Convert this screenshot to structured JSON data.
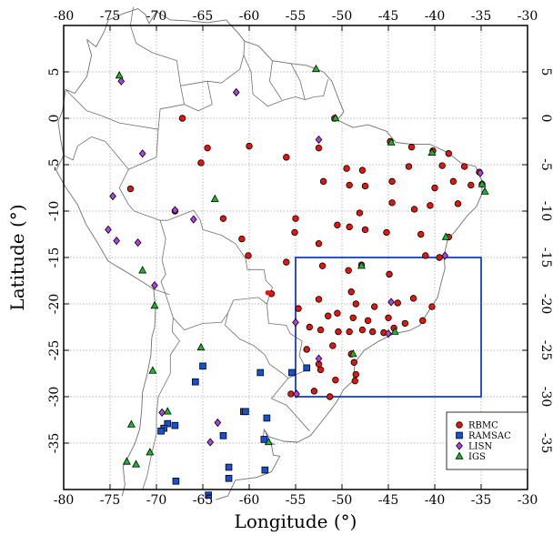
{
  "colors": {
    "rbmc": "#e8140c",
    "ramsac": "#1450d8",
    "lisn": "#b040e8",
    "igs": "#10c020",
    "region_box": "#1440c8",
    "coast": "#707070",
    "grid": "#a0a0a0"
  },
  "chart_data": {
    "type": "scatter",
    "xlabel": "Longitude (°)",
    "ylabel": "Latitude (°)",
    "xlim": [
      -80,
      -30
    ],
    "ylim": [
      -40,
      10
    ],
    "xticks": [
      -80,
      -75,
      -70,
      -65,
      -60,
      -55,
      -50,
      -45,
      -40,
      -35,
      -30
    ],
    "yticks": [
      5,
      0,
      -5,
      -10,
      -15,
      -20,
      -25,
      -30,
      -35
    ],
    "grid": true,
    "legend_position": "bottom-right",
    "region_box": {
      "lon": [
        -55,
        -35
      ],
      "lat": [
        -30,
        -15
      ]
    },
    "series": [
      {
        "name": "RBMC",
        "marker": "circle",
        "points": [
          [
            -67.2,
            0.0
          ],
          [
            -50.8,
            0.0
          ],
          [
            -64.5,
            -3.2
          ],
          [
            -60.0,
            -3.0
          ],
          [
            -56.0,
            -4.2
          ],
          [
            -52.5,
            -3.2
          ],
          [
            -65.2,
            -4.8
          ],
          [
            -49.5,
            -5.4
          ],
          [
            -47.8,
            -5.6
          ],
          [
            -44.8,
            -2.5
          ],
          [
            -42.5,
            -3.1
          ],
          [
            -40.2,
            -3.5
          ],
          [
            -38.5,
            -3.8
          ],
          [
            -39.2,
            -5.1
          ],
          [
            -36.8,
            -5.2
          ],
          [
            -35.2,
            -5.8
          ],
          [
            -34.9,
            -7.1
          ],
          [
            -36.1,
            -7.2
          ],
          [
            -38.0,
            -6.8
          ],
          [
            -40.0,
            -7.5
          ],
          [
            -42.8,
            -5.2
          ],
          [
            -44.6,
            -6.8
          ],
          [
            -47.5,
            -7.3
          ],
          [
            -49.2,
            -7.2
          ],
          [
            -52.0,
            -6.8
          ],
          [
            -72.8,
            -7.6
          ],
          [
            -68.0,
            -10.0
          ],
          [
            -62.8,
            -10.8
          ],
          [
            -60.8,
            -13.0
          ],
          [
            -55.0,
            -10.8
          ],
          [
            -52.5,
            -13.5
          ],
          [
            -48.1,
            -10.2
          ],
          [
            -44.6,
            -9.1
          ],
          [
            -42.2,
            -9.8
          ],
          [
            -40.5,
            -9.4
          ],
          [
            -37.5,
            -9.2
          ],
          [
            -38.5,
            -12.8
          ],
          [
            -41.5,
            -12.5
          ],
          [
            -45.2,
            -12.3
          ],
          [
            -47.5,
            -12.0
          ],
          [
            -49.2,
            -11.7
          ],
          [
            -50.5,
            -11.5
          ],
          [
            -55.1,
            -12.3
          ],
          [
            -60.1,
            -14.8
          ],
          [
            -56.0,
            -15.5
          ],
          [
            -52.1,
            -15.9
          ],
          [
            -49.3,
            -16.4
          ],
          [
            -47.9,
            -15.8
          ],
          [
            -44.9,
            -16.8
          ],
          [
            -41.0,
            -14.8
          ],
          [
            -39.5,
            -15.0
          ],
          [
            -57.6,
            -18.9
          ],
          [
            -54.7,
            -20.5
          ],
          [
            -52.5,
            -19.5
          ],
          [
            -49.0,
            -18.7
          ],
          [
            -48.5,
            -20.0
          ],
          [
            -46.5,
            -20.3
          ],
          [
            -44.0,
            -19.9
          ],
          [
            -42.3,
            -19.4
          ],
          [
            -40.3,
            -20.3
          ],
          [
            -50.5,
            -21.0
          ],
          [
            -51.5,
            -21.3
          ],
          [
            -48.8,
            -21.5
          ],
          [
            -47.2,
            -21.8
          ],
          [
            -45.0,
            -21.5
          ],
          [
            -43.2,
            -22.1
          ],
          [
            -41.3,
            -21.8
          ],
          [
            -53.5,
            -22.5
          ],
          [
            -52.3,
            -22.8
          ],
          [
            -50.4,
            -23.0
          ],
          [
            -49.2,
            -23.0
          ],
          [
            -47.8,
            -22.8
          ],
          [
            -46.7,
            -23.0
          ],
          [
            -45.5,
            -23.1
          ],
          [
            -44.4,
            -22.6
          ],
          [
            -53.8,
            -24.9
          ],
          [
            -51.0,
            -24.5
          ],
          [
            -49.0,
            -25.4
          ],
          [
            -52.5,
            -26.5
          ],
          [
            -48.7,
            -26.3
          ],
          [
            -52.3,
            -27.1
          ],
          [
            -48.5,
            -27.6
          ],
          [
            -48.6,
            -28.3
          ],
          [
            -50.7,
            -28.2
          ],
          [
            -55.5,
            -29.7
          ],
          [
            -53.0,
            -29.4
          ],
          [
            -51.3,
            -30.0
          ]
        ],
        "special_points": [
          [
            -58.0,
            -18.8
          ]
        ]
      },
      {
        "name": "RAMSAC",
        "marker": "square",
        "points": [
          [
            -65.0,
            -26.7
          ],
          [
            -65.8,
            -28.4
          ],
          [
            -58.8,
            -27.4
          ],
          [
            -55.4,
            -27.4
          ],
          [
            -53.8,
            -26.9
          ],
          [
            -68.8,
            -32.9
          ],
          [
            -69.2,
            -33.4
          ],
          [
            -69.5,
            -33.7
          ],
          [
            -68.0,
            -33.1
          ],
          [
            -60.6,
            -31.6
          ],
          [
            -60.4,
            -31.6
          ],
          [
            -58.1,
            -32.3
          ],
          [
            -58.4,
            -34.6
          ],
          [
            -62.8,
            -34.2
          ],
          [
            -62.2,
            -37.6
          ],
          [
            -58.3,
            -37.9
          ],
          [
            -67.9,
            -39.1
          ],
          [
            -62.2,
            -38.8
          ],
          [
            -64.4,
            -40.6
          ]
        ]
      },
      {
        "name": "LISN",
        "marker": "diamond",
        "points": [
          [
            -73.8,
            4.0
          ],
          [
            -61.4,
            2.8
          ],
          [
            -71.5,
            -3.8
          ],
          [
            -52.5,
            -2.3
          ],
          [
            -74.7,
            -8.4
          ],
          [
            -68.0,
            -9.9
          ],
          [
            -75.2,
            -12.0
          ],
          [
            -74.3,
            -13.2
          ],
          [
            -72.0,
            -13.4
          ],
          [
            -70.2,
            -18.0
          ],
          [
            -66.0,
            -10.9
          ],
          [
            -55.0,
            -22.0
          ],
          [
            -52.5,
            -25.9
          ],
          [
            -44.7,
            -19.8
          ],
          [
            -45.0,
            -23.2
          ],
          [
            -38.9,
            -14.8
          ],
          [
            -35.1,
            -5.9
          ],
          [
            -54.9,
            -29.7
          ],
          [
            -69.4,
            -31.7
          ],
          [
            -63.4,
            -32.8
          ],
          [
            -64.2,
            -34.9
          ]
        ]
      },
      {
        "name": "IGS",
        "marker": "triangle",
        "points": [
          [
            -74.0,
            4.6
          ],
          [
            -52.8,
            5.3
          ],
          [
            -50.7,
            0.0
          ],
          [
            -44.7,
            -2.6
          ],
          [
            -40.3,
            -3.7
          ],
          [
            -34.9,
            -7.1
          ],
          [
            -34.6,
            -7.9
          ],
          [
            -63.7,
            -8.7
          ],
          [
            -38.8,
            -12.8
          ],
          [
            -71.5,
            -16.4
          ],
          [
            -70.2,
            -20.2
          ],
          [
            -47.9,
            -15.9
          ],
          [
            -65.2,
            -24.7
          ],
          [
            -48.8,
            -25.4
          ],
          [
            -44.3,
            -23.0
          ],
          [
            -70.4,
            -27.2
          ],
          [
            -68.8,
            -31.6
          ],
          [
            -72.7,
            -33.0
          ],
          [
            -70.7,
            -36.0
          ],
          [
            -57.9,
            -34.9
          ],
          [
            -73.2,
            -37.0
          ],
          [
            -72.2,
            -37.3
          ]
        ]
      }
    ]
  }
}
